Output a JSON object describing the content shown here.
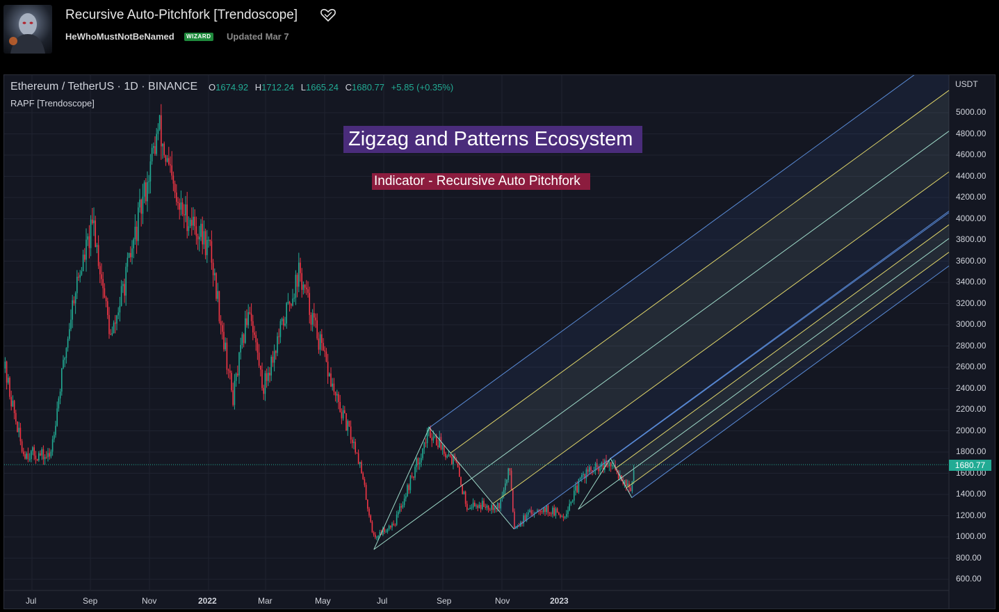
{
  "header": {
    "script_title": "Recursive Auto-Pitchfork [Trendoscope]",
    "favorite_icon": "heart-icon",
    "author": "HeWhoMustNotBeNamed",
    "author_badge": "WIZARD",
    "updated": "Updated Mar 7"
  },
  "legend": {
    "symbol": "Ethereum / TetherUS · 1D · BINANCE",
    "open_key": "O",
    "open": "1674.92",
    "high_key": "H",
    "high": "1712.24",
    "low_key": "L",
    "low": "1665.24",
    "close_key": "C",
    "close": "1680.77",
    "change": "+5.85 (+0.35%)",
    "indicator": "RAPF [Trendoscope]"
  },
  "banners": {
    "title": "Zigzag and Patterns Ecosystem",
    "subtitle": "Indicator - Recursive Auto Pitchfork"
  },
  "colors": {
    "up": "#22ab94",
    "down": "#f23645",
    "fork_outer": "#5b8dd9",
    "fork_inner": "#e0d66a",
    "fork_median": "#9ed9c8",
    "banner_purple": "#4a2c7b",
    "banner_red": "#8c1c3e"
  },
  "price_axis": {
    "currency": "USDT",
    "ticks": [
      "5000.00",
      "4800.00",
      "4600.00",
      "4400.00",
      "4200.00",
      "4000.00",
      "3800.00",
      "3600.00",
      "3400.00",
      "3200.00",
      "3000.00",
      "2800.00",
      "2600.00",
      "2400.00",
      "2200.00",
      "2000.00",
      "1800.00",
      "1600.00",
      "1400.00",
      "1200.00",
      "1000.00",
      "800.00",
      "600.00"
    ],
    "last_price": "1680.77"
  },
  "time_axis": {
    "ticks": [
      {
        "label": "Jul",
        "bold": false
      },
      {
        "label": "Sep",
        "bold": false
      },
      {
        "label": "Nov",
        "bold": false
      },
      {
        "label": "2022",
        "bold": true
      },
      {
        "label": "Mar",
        "bold": false
      },
      {
        "label": "May",
        "bold": false
      },
      {
        "label": "Jul",
        "bold": false
      },
      {
        "label": "Sep",
        "bold": false
      },
      {
        "label": "Nov",
        "bold": false
      },
      {
        "label": "2023",
        "bold": true
      }
    ]
  },
  "chart_data": {
    "type": "candlestick",
    "symbol": "ETH/USDT",
    "timeframe": "1D",
    "ylim": [
      500,
      5300
    ],
    "anchor_points": [
      {
        "date": "2021-06-01",
        "price": 2700
      },
      {
        "date": "2021-06-22",
        "price": 1800
      },
      {
        "date": "2021-07-20",
        "price": 1750
      },
      {
        "date": "2021-08-14",
        "price": 3300
      },
      {
        "date": "2021-09-03",
        "price": 3950
      },
      {
        "date": "2021-09-21",
        "price": 2850
      },
      {
        "date": "2021-10-10",
        "price": 3600
      },
      {
        "date": "2021-11-09",
        "price": 4860
      },
      {
        "date": "2021-11-28",
        "price": 4100
      },
      {
        "date": "2021-12-12",
        "price": 4000
      },
      {
        "date": "2022-01-01",
        "price": 3700
      },
      {
        "date": "2022-01-24",
        "price": 2300
      },
      {
        "date": "2022-02-10",
        "price": 3200
      },
      {
        "date": "2022-02-24",
        "price": 2400
      },
      {
        "date": "2022-04-02",
        "price": 3500
      },
      {
        "date": "2022-05-10",
        "price": 2300
      },
      {
        "date": "2022-06-01",
        "price": 1800
      },
      {
        "date": "2022-06-18",
        "price": 990
      },
      {
        "date": "2022-07-10",
        "price": 1150
      },
      {
        "date": "2022-08-14",
        "price": 2000
      },
      {
        "date": "2022-09-10",
        "price": 1700
      },
      {
        "date": "2022-09-21",
        "price": 1300
      },
      {
        "date": "2022-10-25",
        "price": 1300
      },
      {
        "date": "2022-11-05",
        "price": 1650
      },
      {
        "date": "2022-11-09",
        "price": 1100
      },
      {
        "date": "2022-12-05",
        "price": 1280
      },
      {
        "date": "2022-12-30",
        "price": 1200
      },
      {
        "date": "2023-01-20",
        "price": 1600
      },
      {
        "date": "2023-02-16",
        "price": 1680
      },
      {
        "date": "2023-03-10",
        "price": 1450
      },
      {
        "date": "2023-03-13",
        "price": 1680
      }
    ],
    "pitchforks": [
      {
        "level": 1,
        "pivots": [
          {
            "date": "2022-06-18",
            "price": 881
          },
          {
            "date": "2022-08-14",
            "price": 2030
          },
          {
            "date": "2022-11-09",
            "price": 1074
          }
        ],
        "end": {
          "date": "2023-12-31"
        }
      },
      {
        "level": 2,
        "pivots": [
          {
            "date": "2023-01-14",
            "price": 1260
          },
          {
            "date": "2023-02-16",
            "price": 1740
          },
          {
            "date": "2023-03-10",
            "price": 1370
          }
        ],
        "end": {
          "date": "2023-12-31"
        }
      }
    ]
  }
}
